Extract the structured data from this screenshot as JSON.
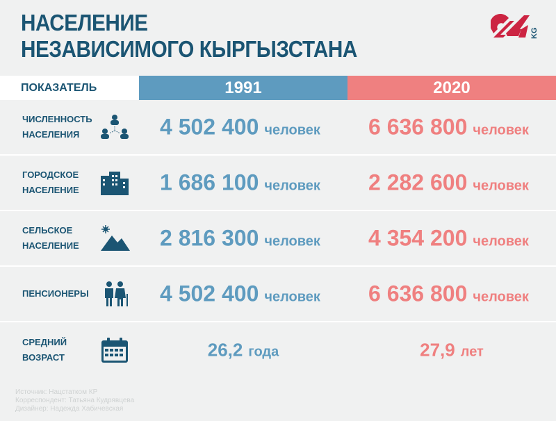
{
  "title": {
    "line1": "НАСЕЛЕНИЕ",
    "line2": "НЕЗАВИСИМОГО КЫРГЫЗСТАНА"
  },
  "logo": {
    "text": "24",
    "suffix": "KG",
    "color": "#cc2442"
  },
  "header": {
    "indicator": "ПОКАЗАТЕЛЬ",
    "year1": "1991",
    "year2": "2020"
  },
  "colors": {
    "dark": "#1b5573",
    "blue": "#5e9bbf",
    "red": "#ef8080"
  },
  "rows": [
    {
      "label1": "ЧИСЛЕННОСТЬ",
      "label2": "НАСЕЛЕНИЯ",
      "icon": "people-network-icon",
      "v1": "4 502 400",
      "u1": "человек",
      "v2": "6 636 800",
      "u2": "человек"
    },
    {
      "label1": "ГОРОДСКОЕ",
      "label2": "НАСЕЛЕНИЕ",
      "icon": "city-buildings-icon",
      "v1": "1 686 100",
      "u1": "человек",
      "v2": "2 282 600",
      "u2": "человек"
    },
    {
      "label1": "СЕЛЬСКОЕ",
      "label2": "НАСЕЛЕНИЕ",
      "icon": "mountains-sun-icon",
      "v1": "2 816 300",
      "u1": "человек",
      "v2": "4 354 200",
      "u2": "человек"
    },
    {
      "label1": "ПЕНСИОНЕРЫ",
      "label2": "",
      "icon": "elderly-couple-icon",
      "v1": "4 502 400",
      "u1": "человек",
      "v2": "6 636 800",
      "u2": "человек"
    },
    {
      "label1": "СРЕДНИЙ",
      "label2": "ВОЗРАСТ",
      "icon": "calendar-icon",
      "v1": "26,2",
      "u1": "года",
      "v2": "27,9",
      "u2": "лет"
    }
  ],
  "credits": [
    "Источник: Нацстатком КР",
    "Корреспондент: Татьяна Кудрявцева",
    "Дизайнер: Надежда Хабичевская"
  ]
}
